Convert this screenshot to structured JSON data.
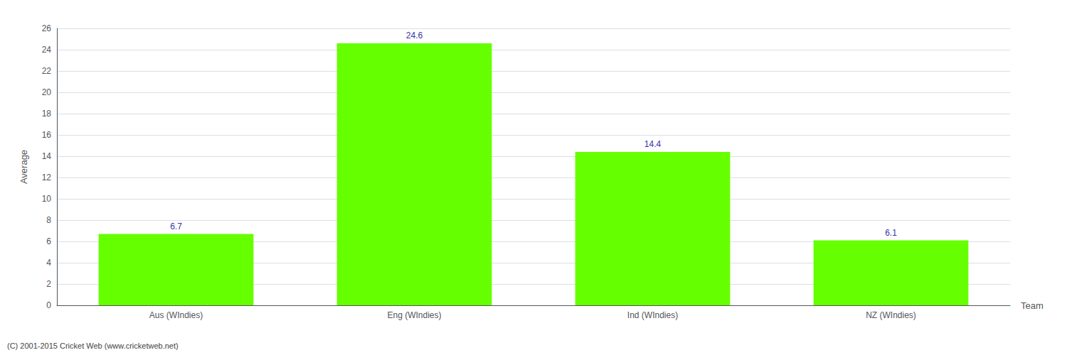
{
  "chart_data": {
    "type": "bar",
    "categories": [
      "Aus (WIndies)",
      "Eng (WIndies)",
      "Ind (WIndies)",
      "NZ (WIndies)"
    ],
    "values": [
      6.7,
      24.6,
      14.4,
      6.1
    ],
    "color": "#66ff00",
    "xlabel": "Team",
    "ylabel": "Average",
    "ylim": [
      0,
      26
    ],
    "yticks": [
      0,
      2,
      4,
      6,
      8,
      10,
      12,
      14,
      16,
      18,
      20,
      22,
      24,
      26
    ],
    "grid": true,
    "data_labels": true,
    "annotations": [
      "(C) 2001-2015 Cricket Web (www.cricketweb.net)"
    ]
  }
}
